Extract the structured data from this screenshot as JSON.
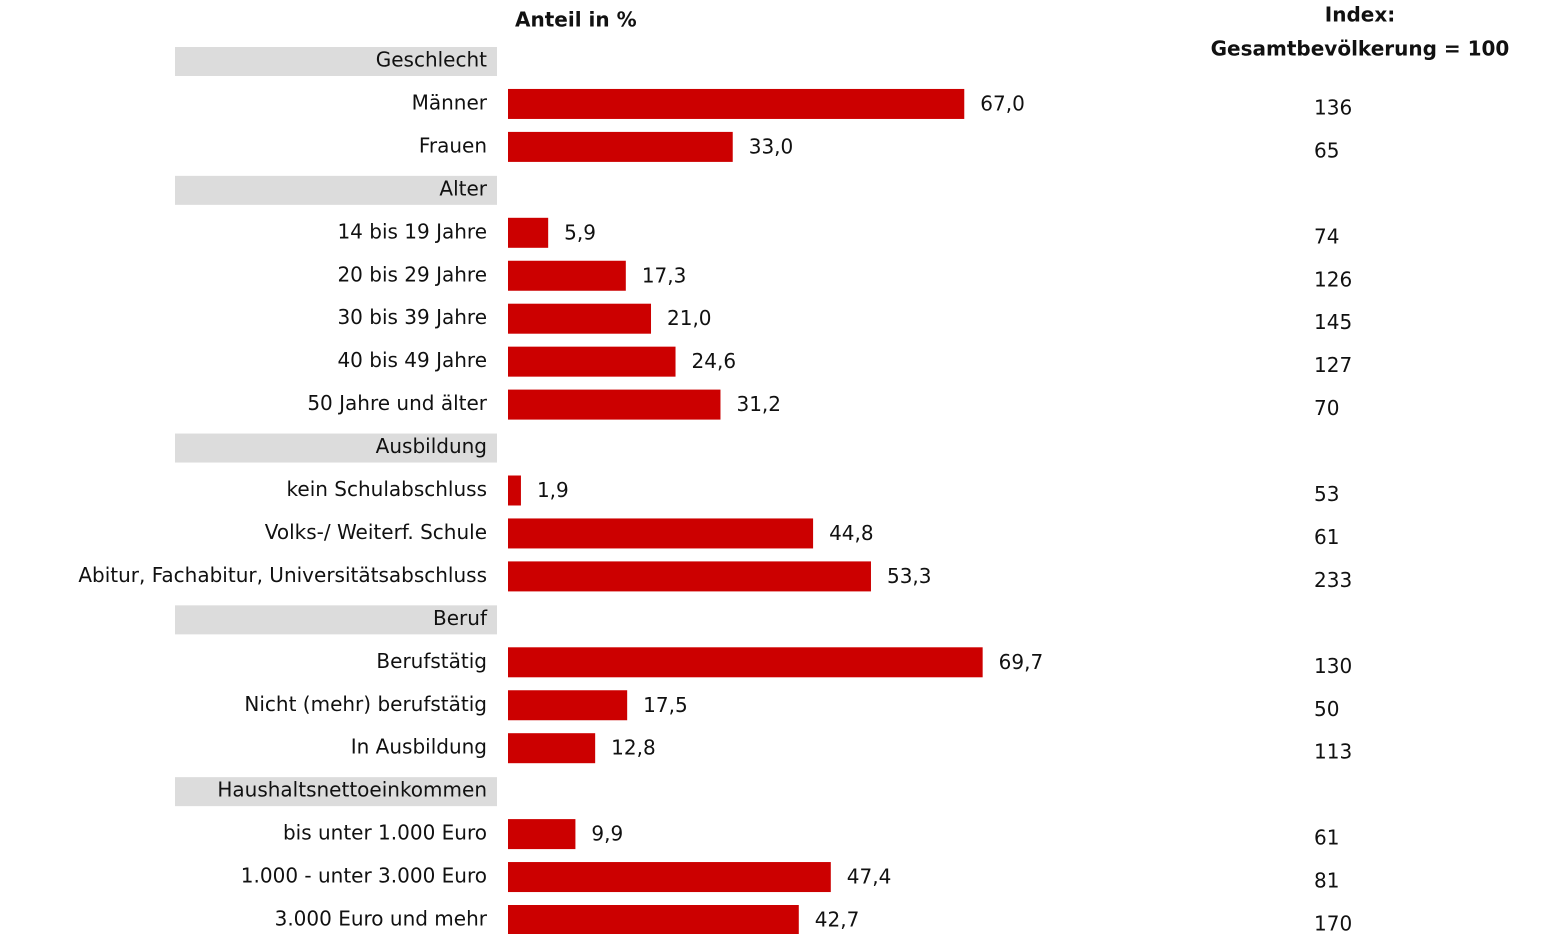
{
  "chart_data": {
    "type": "bar",
    "orientation": "horizontal",
    "title": "Anteil in %",
    "index_title": [
      "Index:",
      "Gesamtbevölkerung = 100"
    ],
    "color": "#cc0000",
    "groups": [
      {
        "name": "Geschlecht",
        "categories": [
          "Männer",
          "Frauen"
        ],
        "values": [
          67.0,
          33.0
        ],
        "value_labels": [
          "67,0",
          "33,0"
        ],
        "index": [
          136,
          65
        ]
      },
      {
        "name": "Alter",
        "categories": [
          "14 bis 19 Jahre",
          "20 bis 29 Jahre",
          "30 bis 39 Jahre",
          "40 bis 49 Jahre",
          "50 Jahre und älter"
        ],
        "values": [
          5.9,
          17.3,
          21.0,
          24.6,
          31.2
        ],
        "value_labels": [
          "5,9",
          "17,3",
          "21,0",
          "24,6",
          "31,2"
        ],
        "index": [
          74,
          126,
          145,
          127,
          70
        ]
      },
      {
        "name": "Ausbildung",
        "categories": [
          "kein Schulabschluss",
          "Volks-/ Weiterf. Schule",
          "Abitur, Fachabitur, Universitätsabschluss"
        ],
        "values": [
          1.9,
          44.8,
          53.3
        ],
        "value_labels": [
          "1,9",
          "44,8",
          "53,3"
        ],
        "index": [
          53,
          61,
          233
        ]
      },
      {
        "name": "Beruf",
        "categories": [
          "Berufstätig",
          "Nicht (mehr) berufstätig",
          "In Ausbildung"
        ],
        "values": [
          69.7,
          17.5,
          12.8
        ],
        "value_labels": [
          "69,7",
          "17,5",
          "12,8"
        ],
        "index": [
          130,
          50,
          113
        ]
      },
      {
        "name": "Haushaltsnettoeinkommen",
        "categories": [
          "bis unter 1.000 Euro",
          "1.000 - unter 3.000 Euro",
          "3.000 Euro und mehr"
        ],
        "values": [
          9.9,
          47.4,
          42.7
        ],
        "value_labels": [
          "9,9",
          "47,4",
          "42,7"
        ],
        "index": [
          61,
          81,
          170
        ]
      }
    ]
  }
}
